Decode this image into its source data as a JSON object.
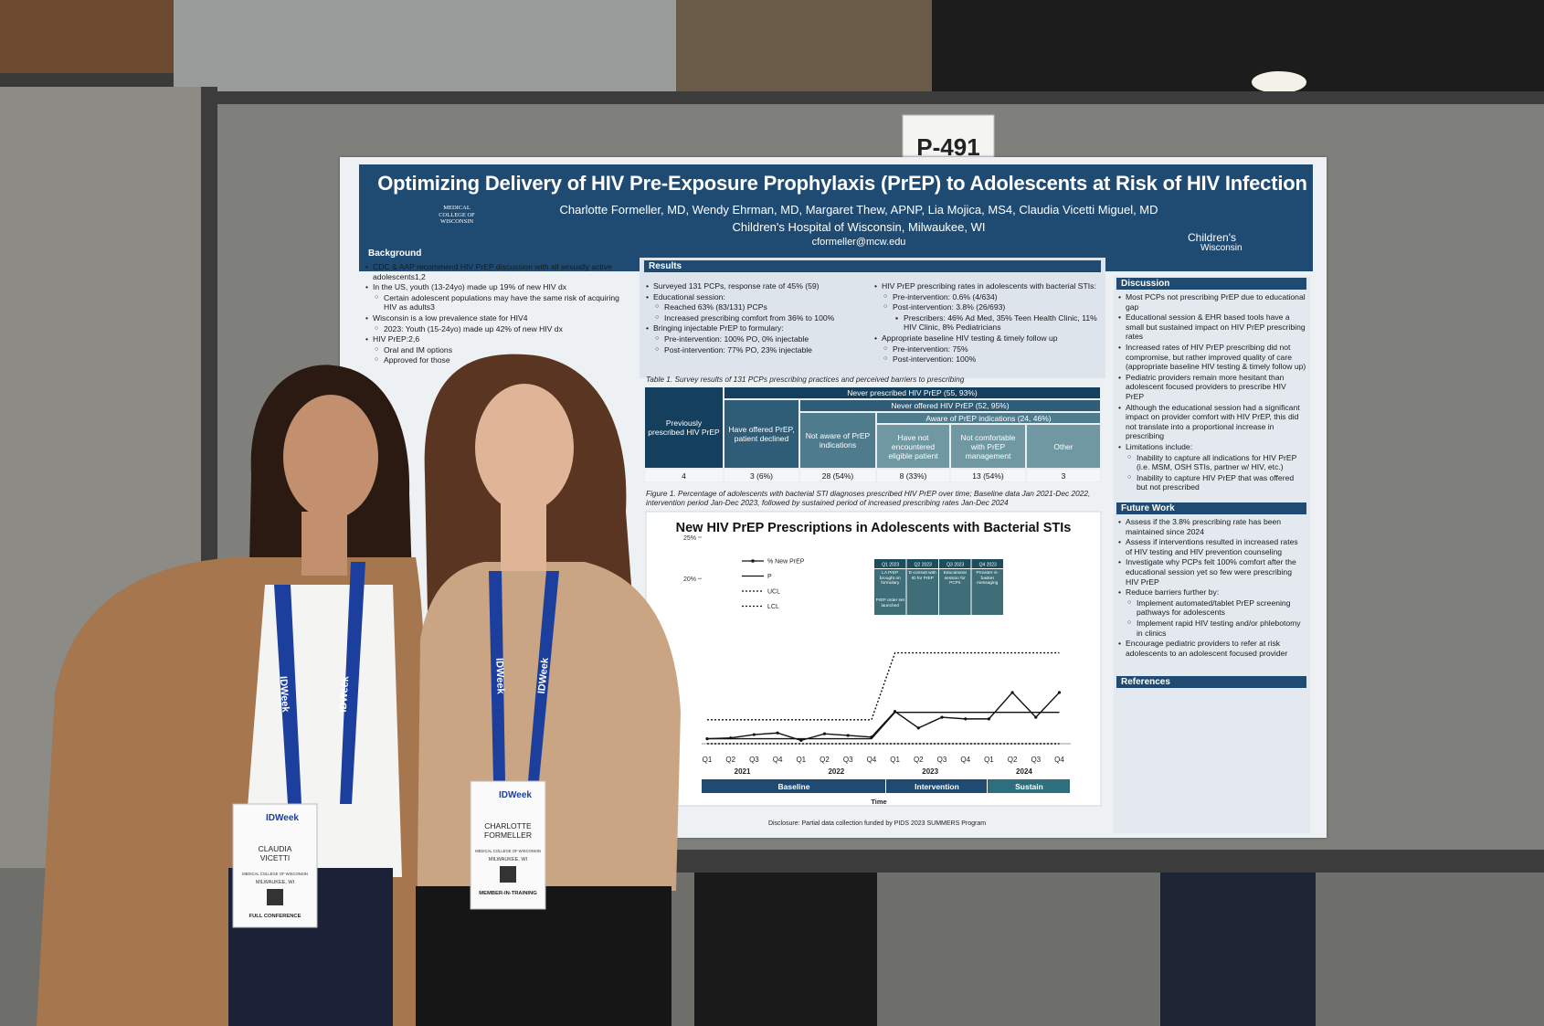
{
  "sign": "P-491",
  "poster": {
    "title": "Optimizing Delivery of HIV Pre-Exposure Prophylaxis (PrEP) to Adolescents at Risk of HIV Infection",
    "authors": "Charlotte Formeller, MD, Wendy Ehrman, MD, Margaret Thew, APNP, Lia Mojica, MS4, Claudia Vicetti Miguel, MD",
    "affiliation": "Children's Hospital of Wisconsin, Milwaukee, WI",
    "email": "cformeller@mcw.edu",
    "logo_left": "MEDICAL COLLEGE OF WISCONSIN",
    "logo_right": [
      "Children's",
      "Wisconsin"
    ],
    "background": {
      "heading": "Background",
      "items": [
        "CDC & AAP recommend HIV PrEP discussion with all sexually active adolescents1,2",
        "In the US, youth (13-24yo) made up 19% of new HIV dx",
        [
          "Certain adolescent populations may have the same risk of acquiring HIV as adults3"
        ],
        "Wisconsin is a low prevalence state for HIV4",
        [
          "2023: Youth (15-24yo) made up 42% of new HIV dx"
        ],
        "HIV PrEP:2,6",
        [
          "Oral and IM options",
          "Approved for those"
        ]
      ]
    },
    "results": {
      "heading": "Results",
      "left_items": [
        "Surveyed 131 PCPs, response rate of 45% (59)",
        "Educational session:",
        [
          "Reached 63% (83/131) PCPs",
          "Increased prescribing comfort from 36% to 100%"
        ],
        "Bringing injectable PrEP to formulary:",
        [
          "Pre-intervention: 100% PO, 0% injectable",
          "Post-intervention: 77% PO, 23% injectable"
        ]
      ],
      "right_items": [
        "HIV PrEP prescribing rates in adolescents with bacterial STIs:",
        [
          "Pre-intervention: 0.6% (4/634)",
          "Post-intervention: 3.8% (26/693)",
          [
            "Prescribers: 46% Ad Med, 35% Teen Health Clinic, 11% HIV Clinic, 8% Pediatricians"
          ]
        ],
        "Appropriate baseline HIV testing & timely follow up",
        [
          "Pre-intervention: 75%",
          "Post-intervention: 100%"
        ]
      ],
      "table_caption": "Table 1. Survey results of 131 PCPs prescribing practices and perceived barriers to prescribing",
      "table": {
        "previously": "Previously prescribed HIV PrEP",
        "never": "Never prescribed HIV PrEP (55, 93%)",
        "declined": "Have offered PrEP, patient declined",
        "never_offered": "Never offered HIV PrEP (52, 95%)",
        "not_aware": "Not aware of PrEP indications",
        "aware": "Aware of PrEP indications (24, 46%)",
        "not_encountered": "Have not encountered eligible patient",
        "not_comfortable": "Not comfortable with PrEP management",
        "other": "Other",
        "counts": [
          "4",
          "3 (6%)",
          "28 (54%)",
          "8 (33%)",
          "13 (54%)",
          "3"
        ]
      }
    },
    "figure": {
      "caption": "Figure 1.  Percentage of adolescents with bacterial STI diagnoses prescribed HIV PrEP over time; Baseline data Jan 2021-Dec 2022, intervention period Jan-Dec 2023, followed by sustained period of increased prescribing rates Jan-Dec 2024",
      "title": "New HIV PrEP Prescriptions in Adolescents with Bacterial STIs",
      "ylim": [
        0,
        25
      ],
      "yticks": [
        {
          "value": 25,
          "label": "25%"
        },
        {
          "value": 20,
          "label": "20%"
        }
      ],
      "quarters": [
        "Q1",
        "Q2",
        "Q3",
        "Q4",
        "Q1",
        "Q2",
        "Q3",
        "Q4",
        "Q1",
        "Q2",
        "Q3",
        "Q4",
        "Q1",
        "Q2",
        "Q3",
        "Q4"
      ],
      "years": [
        "2021",
        "2022",
        "2023",
        "2024"
      ],
      "phases": [
        "Baseline",
        "Intervention",
        "Sustain"
      ],
      "xlabel": "Time",
      "series": [
        {
          "name": "% New PrEP",
          "color": "#111111",
          "linestyle": "solid",
          "marker": true,
          "values": [
            0.6,
            0.7,
            1.1,
            1.3,
            0.4,
            1.2,
            1.0,
            0.8,
            3.9,
            1.9,
            3.2,
            3.0,
            3.0,
            6.2,
            3.2,
            6.2
          ]
        },
        {
          "name": "P",
          "color": "#111111",
          "linestyle": "solid",
          "marker": false,
          "values": [
            0.6,
            0.6,
            0.6,
            0.6,
            0.6,
            0.6,
            0.6,
            0.6,
            3.8,
            3.8,
            3.8,
            3.8,
            3.8,
            3.8,
            3.8,
            3.8
          ]
        },
        {
          "name": "UCL",
          "color": "#111111",
          "linestyle": "dotted",
          "marker": false,
          "values": [
            2.9,
            2.9,
            2.9,
            2.9,
            2.9,
            2.9,
            2.9,
            2.9,
            11,
            11,
            11,
            11,
            11,
            11,
            11,
            11
          ]
        },
        {
          "name": "LCL",
          "color": "#111111",
          "linestyle": "dotted",
          "marker": false,
          "values": [
            0,
            0,
            0,
            0,
            0,
            0,
            0,
            0,
            0,
            0,
            0,
            0,
            0,
            0,
            0,
            0
          ]
        }
      ],
      "timeline": {
        "headers": [
          "Q1 2023",
          "Q2 2023",
          "Q3 2023",
          "Q4 2023"
        ],
        "cells": [
          "LA PrEP brought on formulary",
          "E-consult with ID for PrEP",
          "Educational session for PCPs",
          "Provider in-basket messaging"
        ],
        "note": "PrEP order set launched"
      }
    },
    "discussion": {
      "heading": "Discussion",
      "items": [
        "Most PCPs not prescribing PrEP due to educational gap",
        "Educational session & EHR based tools have a small but sustained impact on HIV PrEP prescribing rates",
        "Increased rates of HIV PrEP prescribing did not compromise, but rather improved quality of care (appropriate baseline HIV testing & timely follow up)",
        "Pediatric providers remain more hesitant than adolescent focused providers to prescribe HIV PrEP",
        "Although the educational session had a significant impact on provider comfort with HIV PrEP, this did not translate into a proportional increase in prescribing",
        "Limitations include:",
        [
          "Inability to capture all indications for HIV PrEP (i.e. MSM, OSH STIs, partner w/ HIV, etc.)",
          "Inability to capture HIV PrEP that was offered but not prescribed"
        ]
      ]
    },
    "future_work": {
      "heading": "Future Work",
      "items": [
        "Assess if the 3.8% prescribing rate has been maintained since 2024",
        "Assess if interventions resulted in increased rates of HIV testing and HIV prevention counseling",
        "Investigate why PCPs felt 100% comfort after the educational session yet so few were prescribing HIV PrEP",
        "Reduce barriers further by:",
        [
          "Implement automated/tablet PrEP screening pathways for adolescents",
          "Implement rapid HIV testing and/or phlebotomy in clinics"
        ],
        "Encourage pediatric providers to refer at risk adolescents to an adolescent focused provider"
      ]
    },
    "references": {
      "heading": "References"
    },
    "disclosure": "Disclosure: Partial data collection funded by PIDS 2023 SUMMERS Program"
  },
  "lanyard": "IDWeek",
  "badges": [
    {
      "event": "IDWeek",
      "name": [
        "CLAUDIA",
        "VICETTI"
      ],
      "institution": "MEDICAL COLLEGE OF WISCONSIN",
      "city": "MILWAUKEE, WI",
      "type": "FULL CONFERENCE"
    },
    {
      "event": "IDWeek",
      "name": [
        "CHARLOTTE",
        "FORMELLER"
      ],
      "institution": "MEDICAL COLLEGE OF WISCONSIN",
      "city": "MILWAUKEE, WI",
      "type": "MEMBER-IN-TRAINING"
    }
  ]
}
